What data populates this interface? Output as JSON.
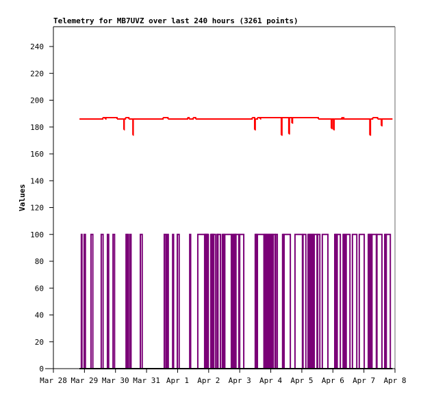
{
  "chart_data": {
    "type": "line",
    "title": "Telemetry for MB7UVZ over last 240 hours (3261 points)",
    "xlabel": "",
    "ylabel": "Values",
    "ylim": [
      0,
      255
    ],
    "xlim_days": [
      0,
      11
    ],
    "grid": false,
    "x_ticks": [
      "Mar 28",
      "Mar 29",
      "Mar 30",
      "Mar 31",
      "Apr 1",
      "Apr 2",
      "Apr 3",
      "Apr 4",
      "Apr 5",
      "Apr 6",
      "Apr 7",
      "Apr 8"
    ],
    "y_ticks": [
      0,
      20,
      40,
      60,
      80,
      100,
      120,
      140,
      160,
      180,
      200,
      220,
      240
    ],
    "series": [
      {
        "name": "red-series",
        "color": "#ff0000",
        "kind": "step",
        "points_days_value": [
          [
            0.84,
            186
          ],
          [
            1.59,
            187
          ],
          [
            1.67,
            186
          ],
          [
            1.69,
            187
          ],
          [
            2.05,
            186
          ],
          [
            2.26,
            186
          ],
          [
            2.27,
            178
          ],
          [
            2.28,
            186
          ],
          [
            2.32,
            187
          ],
          [
            2.43,
            186
          ],
          [
            2.56,
            174
          ],
          [
            2.57,
            186
          ],
          [
            3.53,
            187
          ],
          [
            3.69,
            186
          ],
          [
            4.32,
            187
          ],
          [
            4.37,
            186
          ],
          [
            4.5,
            187
          ],
          [
            4.58,
            186
          ],
          [
            6.4,
            187
          ],
          [
            6.48,
            178
          ],
          [
            6.5,
            186
          ],
          [
            6.57,
            187
          ],
          [
            6.66,
            186
          ],
          [
            6.67,
            187
          ],
          [
            7.34,
            174
          ],
          [
            7.36,
            187
          ],
          [
            7.58,
            175
          ],
          [
            7.6,
            187
          ],
          [
            7.68,
            183
          ],
          [
            7.7,
            187
          ],
          [
            8.53,
            186
          ],
          [
            8.95,
            179
          ],
          [
            8.97,
            186
          ],
          [
            9.02,
            178
          ],
          [
            9.04,
            186
          ],
          [
            9.28,
            187
          ],
          [
            9.3,
            186
          ],
          [
            9.33,
            187
          ],
          [
            9.35,
            186
          ],
          [
            10.19,
            174
          ],
          [
            10.21,
            186
          ],
          [
            10.28,
            187
          ],
          [
            10.44,
            186
          ],
          [
            10.56,
            181
          ],
          [
            10.58,
            186
          ],
          [
            10.92,
            186
          ]
        ]
      },
      {
        "name": "purple-series",
        "color": "#7a0077",
        "kind": "pulses",
        "low": 0,
        "high": 100,
        "start_day": 0.84,
        "end_day": 10.92,
        "high_intervals_days": [
          [
            0.9,
            0.92
          ],
          [
            0.99,
            1.03
          ],
          [
            1.21,
            1.27
          ],
          [
            1.54,
            1.6
          ],
          [
            1.74,
            1.78
          ],
          [
            1.92,
            1.97
          ],
          [
            2.34,
            2.36
          ],
          [
            2.39,
            2.42
          ],
          [
            2.47,
            2.5
          ],
          [
            2.8,
            2.86
          ],
          [
            3.57,
            3.62
          ],
          [
            3.66,
            3.7
          ],
          [
            3.84,
            3.87
          ],
          [
            3.99,
            4.05
          ],
          [
            4.39,
            4.42
          ],
          [
            4.65,
            4.87
          ],
          [
            4.88,
            4.9
          ],
          [
            4.91,
            4.93
          ],
          [
            4.94,
            4.96
          ],
          [
            4.97,
            4.99
          ],
          [
            5.07,
            5.09
          ],
          [
            5.1,
            5.12
          ],
          [
            5.13,
            5.15
          ],
          [
            5.16,
            5.22
          ],
          [
            5.27,
            5.29
          ],
          [
            5.3,
            5.38
          ],
          [
            5.44,
            5.46
          ],
          [
            5.48,
            5.5
          ],
          [
            5.52,
            5.73
          ],
          [
            5.76,
            5.79
          ],
          [
            5.81,
            5.83
          ],
          [
            5.85,
            5.87
          ],
          [
            5.88,
            5.97
          ],
          [
            6.0,
            6.13
          ],
          [
            6.5,
            6.52
          ],
          [
            6.53,
            6.55
          ],
          [
            6.57,
            6.78
          ],
          [
            6.8,
            6.82
          ],
          [
            6.84,
            6.86
          ],
          [
            6.88,
            6.9
          ],
          [
            6.92,
            6.94
          ],
          [
            6.96,
            6.98
          ],
          [
            7.0,
            7.02
          ],
          [
            7.04,
            7.06
          ],
          [
            7.08,
            7.14
          ],
          [
            7.16,
            7.21
          ],
          [
            7.38,
            7.41
          ],
          [
            7.43,
            7.63
          ],
          [
            7.78,
            8.02
          ],
          [
            8.04,
            8.13
          ],
          [
            8.2,
            8.22
          ],
          [
            8.24,
            8.26
          ],
          [
            8.28,
            8.3
          ],
          [
            8.32,
            8.34
          ],
          [
            8.36,
            8.38
          ],
          [
            8.4,
            8.49
          ],
          [
            8.51,
            8.58
          ],
          [
            8.66,
            8.84
          ],
          [
            9.06,
            9.08
          ],
          [
            9.1,
            9.12
          ],
          [
            9.14,
            9.24
          ],
          [
            9.33,
            9.35
          ],
          [
            9.38,
            9.4
          ],
          [
            9.43,
            9.55
          ],
          [
            9.63,
            9.77
          ],
          [
            9.85,
            10.01
          ],
          [
            10.14,
            10.16
          ],
          [
            10.18,
            10.2
          ],
          [
            10.22,
            10.24
          ],
          [
            10.26,
            10.4
          ],
          [
            10.42,
            10.58
          ],
          [
            10.67,
            10.7
          ],
          [
            10.72,
            10.85
          ]
        ]
      }
    ]
  }
}
